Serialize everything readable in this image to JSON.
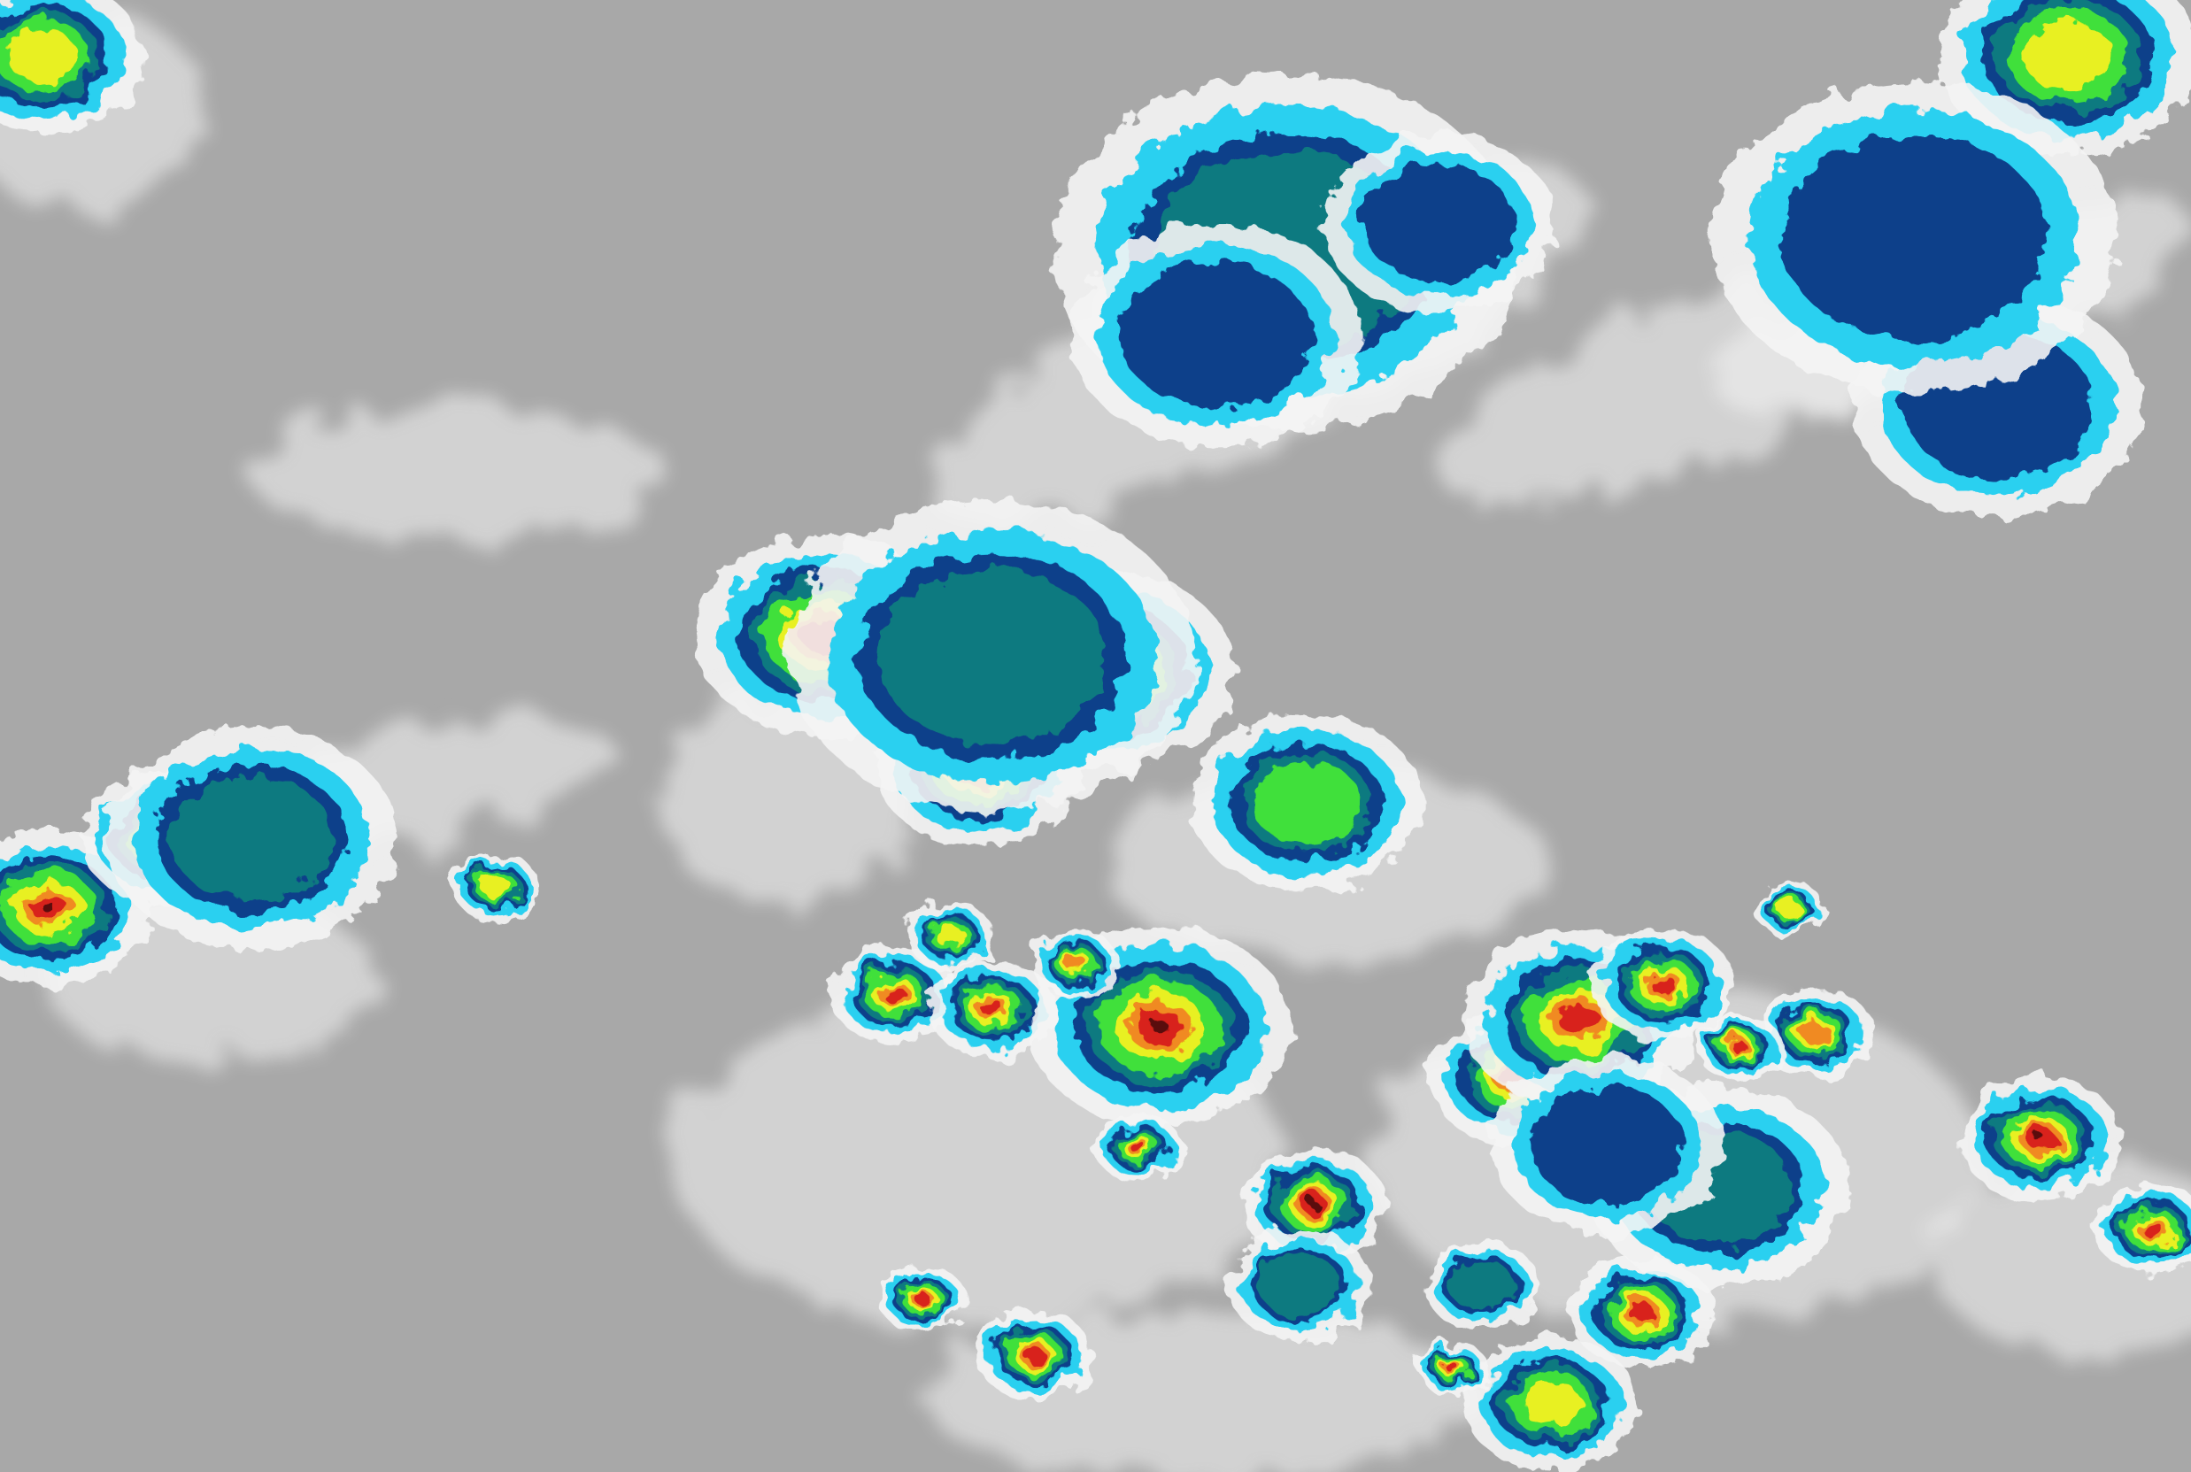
{
  "image": {
    "kind": "enhanced infrared satellite imagery",
    "colors": {
      "background": "#a8a8a8",
      "cloud_white": "#f4f4f4",
      "cyan": "#2ad0f0",
      "dark_blue": "#0b3f8a",
      "teal": "#0a7a80",
      "green": "#3fe03a",
      "yellow": "#e8f020",
      "orange": "#f08a20",
      "red": "#d8201a",
      "core_dark": "#5a1010"
    }
  }
}
